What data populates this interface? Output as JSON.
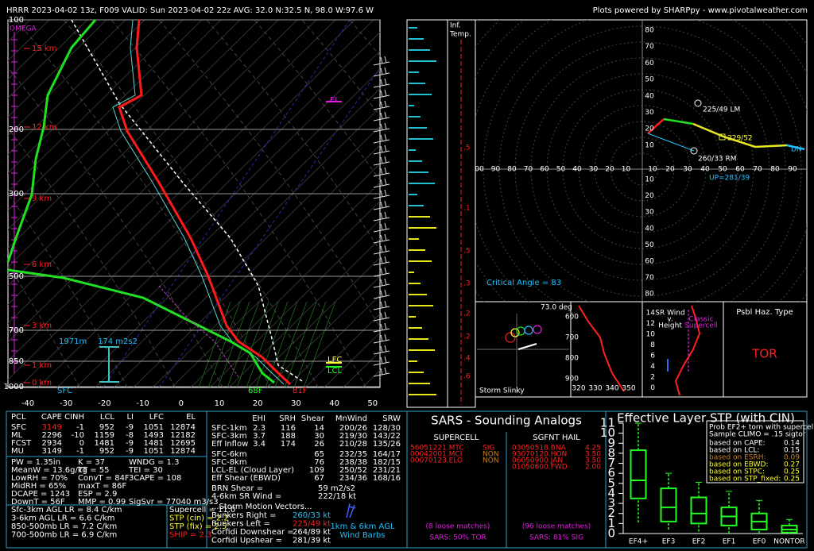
{
  "header": {
    "left": "HRRR 2023-04-02 13z, F009  VALID: Sun 2023-04-02 22z  AVG: 32.0 N:32.5 N, 98.0 W:97.6 W",
    "right": "Plots powered by SHARPpy - www.pivotalweather.com"
  },
  "skewt": {
    "pressure_labels": [
      "100",
      "200",
      "300",
      "500",
      "700",
      "850",
      "1000"
    ],
    "height_labels": [
      "15 km",
      "12 km",
      "9 km",
      "6 km",
      "3 km",
      "1 km",
      "0 km"
    ],
    "temp_labels": [
      "-40",
      "-30",
      "-20",
      "-10",
      "0",
      "10",
      "20",
      "30",
      "40",
      "50"
    ],
    "omega": "OMEGA",
    "el": "EL",
    "lfc": "LFC",
    "lcl": "LCL",
    "eff_depth": "1971m",
    "eff_srh": "174 m2s2",
    "sfc": "SFC",
    "dewpoint": "68F",
    "temp": "81F"
  },
  "inflow": {
    "title": [
      "Inf.",
      "Temp."
    ],
    "labels": [
      ".5",
      ".1",
      ".5",
      ".3",
      ".2",
      ".2",
      ".4",
      ".6"
    ]
  },
  "hodograph": {
    "y_labels": [
      "80",
      "70",
      "60",
      "50",
      "40",
      "30",
      "20",
      "10"
    ],
    "x_left": [
      "00",
      "90",
      "80",
      "70",
      "60",
      "50",
      "40",
      "30",
      "20",
      "10"
    ],
    "x_right": [
      "10",
      "20",
      "30",
      "40",
      "50",
      "60",
      "70",
      "80",
      "90"
    ],
    "lower_labels": [
      "10",
      "20",
      "30",
      "40",
      "50",
      "60",
      "70",
      "80"
    ],
    "lm": "225/49 LM",
    "rm": "260/33 RM",
    "mean": "229/52",
    "dn": "DN",
    "up": "UP=281/39",
    "critical_angle": "Critical Angle = 83"
  },
  "slinky": {
    "angle": "73.0 deg",
    "title": "Storm Slinky"
  },
  "theta": {
    "y_labels": [
      "600",
      "700",
      "800",
      "900"
    ],
    "x_labels": [
      "320",
      "330",
      "340",
      "350"
    ]
  },
  "srwind": {
    "y_labels": [
      "14",
      "12",
      "10",
      "8",
      "6",
      "4",
      "2",
      "0"
    ],
    "title": [
      "SR Wind",
      "v.",
      "Height"
    ],
    "classic": [
      "Classic",
      "Supercell"
    ]
  },
  "hazard": {
    "title": "Psbl Haz. Type",
    "value": "TOR"
  },
  "parcels": {
    "header": [
      "PCL",
      "CAPE",
      "CINH",
      "LCL",
      "LI",
      "LFC",
      "EL"
    ],
    "rows": [
      [
        "SFC",
        "3149",
        "-1",
        "952",
        "-9",
        "1051",
        "12874"
      ],
      [
        "ML",
        "2296",
        "-10",
        "1159",
        "-8",
        "1493",
        "12182"
      ],
      [
        "FCST",
        "2934",
        "0",
        "1481",
        "-9",
        "1481",
        "12695"
      ],
      [
        "MU",
        "3149",
        "-1",
        "952",
        "-9",
        "1051",
        "12874"
      ]
    ]
  },
  "indices": [
    [
      "PW = 1.35in",
      "K = 37",
      "WNDG = 1.3"
    ],
    [
      "MeanW = 13.6g/kg",
      "TT = 55",
      "TEI = 30"
    ],
    [
      "LowRH = 70%",
      "ConvT = 84F",
      "3CAPE = 108"
    ],
    [
      "MidRH = 65%",
      "maxT = 86F"
    ],
    [
      "DCAPE = 1243",
      "ESP = 2.9"
    ],
    [
      "DownT = 56F",
      "MMP = 0.99",
      "SigSvr = 77040 m3/s3"
    ]
  ],
  "lapse_rates": [
    "Sfc-3km AGL LR = 8.4 C/km",
    "3-6km AGL LR = 6.6 C/km",
    "850-500mb LR = 7.2 C/km",
    "700-500mb LR = 6.9 C/km"
  ],
  "composites": [
    "Supercell = 11.0",
    "STP (cin) = 2.2",
    "STP (fix) = 2.5",
    "SHIP = 2.3"
  ],
  "kinematics": {
    "header": [
      "EHI",
      "SRH",
      "Shear",
      "MnWind",
      "SRW"
    ],
    "rows": [
      {
        "label": "SFC-1km",
        "ehi": "2.3",
        "srh": "116",
        "shear": "14",
        "mnwind": "200/26",
        "srw": "128/30"
      },
      {
        "label": "SFC-3km",
        "ehi": "3.7",
        "srh": "188",
        "shear": "30",
        "mnwind": "219/30",
        "srw": "143/22"
      },
      {
        "label": "Eff Inflow",
        "ehi": "3.4",
        "srh": "174",
        "shear": "26",
        "mnwind": "210/28",
        "srw": "135/26"
      },
      {
        "label": "SFC-6km",
        "shear": "65",
        "mnwind": "232/35",
        "srw": "164/17"
      },
      {
        "label": "SFC-8km",
        "shear": "76",
        "mnwind": "238/38",
        "srw": "182/15"
      },
      {
        "label": "LCL-EL (Cloud Layer)",
        "shear": "109",
        "mnwind": "250/52",
        "srw": "231/21"
      },
      {
        "label": "Eff Shear (EBWD)",
        "shear": "67",
        "mnwind": "234/36",
        "srw": "168/16"
      }
    ],
    "extras": [
      [
        "BRN Shear =",
        "59 m2/s2"
      ],
      [
        "4-6km SR Wind =",
        "222/18 kt"
      ]
    ],
    "motion_title": "...Storm Motion Vectors...",
    "motion": [
      [
        "Bunkers Right =",
        "260/33 kt"
      ],
      [
        "Bunkers Left =",
        "225/49 kt"
      ],
      [
        "Corfidi Downshear =",
        "264/89 kt"
      ],
      [
        "Corfidi Upshear =",
        "281/39 kt"
      ]
    ],
    "barbs_label": [
      "1km & 6km AGL",
      "Wind Barbs"
    ]
  },
  "sars": {
    "title": "SARS - Sounding Analogs",
    "supercell_title": "SUPERCELL",
    "hail_title": "SGFNT HAIL",
    "supercell": [
      [
        "56051221.MTC",
        "SIG"
      ],
      [
        "00042001.MCI",
        "NON"
      ],
      [
        "00070123.ELO",
        "NON"
      ]
    ],
    "hail": [
      [
        "03050518.BNA",
        "4.25"
      ],
      [
        "93070120.HON",
        "3.50"
      ],
      [
        "06050900.JAN",
        "3.50"
      ],
      [
        "01050600.FWD",
        "2.00"
      ]
    ],
    "supercell_matches": "(8 loose matches)",
    "hail_matches": "(96 loose matches)",
    "supercell_summary": "SARS: 50% TOR",
    "hail_summary": "SARS: 81% SIG"
  },
  "stp": {
    "title": "Effective Layer STP (with CIN)",
    "ylim": [
      0,
      11
    ],
    "yticks": [
      0,
      1,
      2,
      3,
      4,
      5,
      6,
      7,
      8,
      9,
      10,
      11
    ],
    "categories": [
      "EF4+",
      "EF3",
      "EF2",
      "EF1",
      "EF0",
      "NONTOR"
    ],
    "boxes": [
      {
        "low": 1.1,
        "q1": 3.5,
        "median": 5.3,
        "q3": 8.3,
        "high": 11
      },
      {
        "low": 0.4,
        "q1": 1.2,
        "median": 2.6,
        "q3": 4.5,
        "high": 6
      },
      {
        "low": 0.2,
        "q1": 1.0,
        "median": 2.0,
        "q3": 3.6,
        "high": 5.1
      },
      {
        "low": 0,
        "q1": 0.8,
        "median": 1.7,
        "q3": 2.6,
        "high": 4.2
      },
      {
        "low": 0,
        "q1": 0.4,
        "median": 1.2,
        "q3": 2.0,
        "high": 3.3
      },
      {
        "low": 0,
        "q1": 0.1,
        "median": 0.4,
        "q3": 0.8,
        "high": 1.4
      }
    ],
    "prob_title": [
      "Prob EF2+ torn with supercell",
      "Sample CLIMO = .15 sigtor"
    ],
    "prob": [
      [
        "based on CAPE:",
        "0.14"
      ],
      [
        "based on LCL:",
        "0.15"
      ],
      [
        "based on ESRH:",
        "0.09"
      ],
      [
        "based on EBWD:",
        "0.27"
      ],
      [
        "based on STPC:",
        "0.25"
      ],
      [
        "based on STP_fixed:",
        "0.25"
      ]
    ]
  }
}
